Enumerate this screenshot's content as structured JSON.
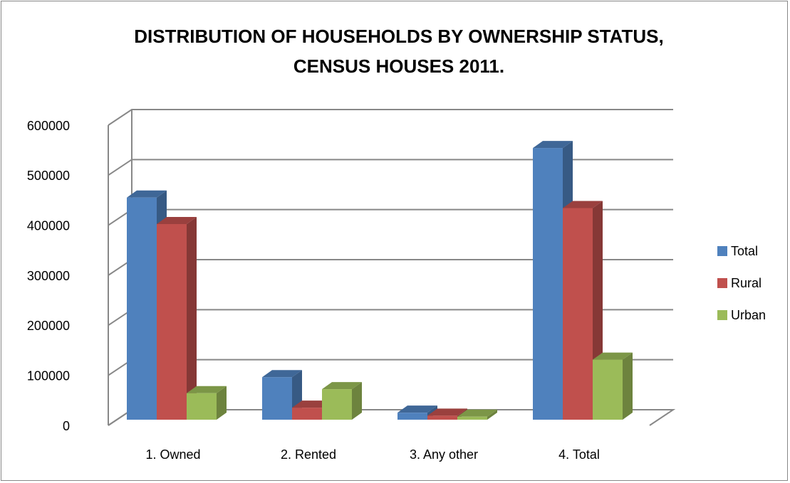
{
  "chart_data": {
    "type": "bar3d",
    "title": "DISTRIBUTION OF HOUSEHOLDS BY OWNERSHIP STATUS, CENSUS HOUSES 2011.",
    "categories": [
      "1. Owned",
      "2. Rented",
      "3. Any other",
      "4. Total"
    ],
    "series": [
      {
        "name": "Total",
        "color": "#4f81bd",
        "values": [
          444000,
          85000,
          14000,
          543000
        ]
      },
      {
        "name": "Rural",
        "color": "#c0504d",
        "values": [
          391000,
          24000,
          8000,
          423000
        ]
      },
      {
        "name": "Urban",
        "color": "#9bbb59",
        "values": [
          53000,
          61000,
          6000,
          120000
        ]
      }
    ],
    "ylim": [
      0,
      600000
    ],
    "yticks": [
      0,
      100000,
      200000,
      300000,
      400000,
      500000,
      600000
    ],
    "grid": true,
    "legend": "right"
  }
}
